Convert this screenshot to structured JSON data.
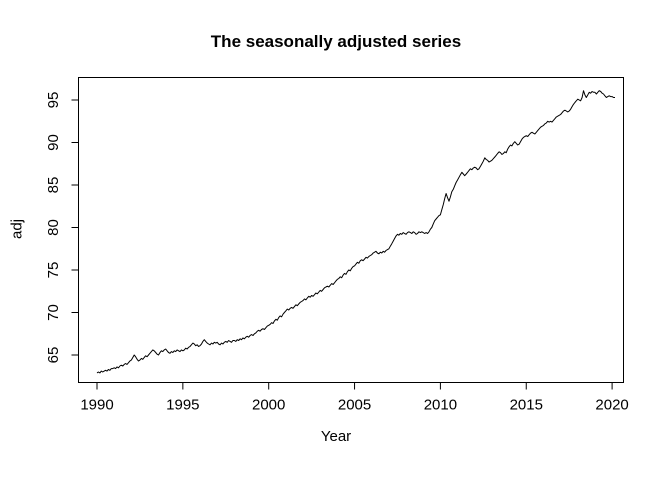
{
  "chart_data": {
    "type": "line",
    "title": "The seasonally adjusted series",
    "xlabel": "Year",
    "ylabel": "adj",
    "x_start": 1990,
    "frequency": 12,
    "xticks": [
      1990,
      1995,
      2000,
      2005,
      2010,
      2015,
      2020
    ],
    "yticks": [
      65,
      70,
      75,
      80,
      85,
      90,
      95
    ],
    "xlim": [
      1988.9,
      2020.7
    ],
    "ylim": [
      61.8,
      97.9
    ],
    "grid": false,
    "legend": null,
    "box": true,
    "line_color": "#000000",
    "background_color": "#ffffff",
    "values": [
      62.9,
      63.0,
      62.9,
      63.1,
      63.0,
      63.1,
      63.2,
      63.1,
      63.3,
      63.2,
      63.4,
      63.4,
      63.5,
      63.4,
      63.6,
      63.5,
      63.7,
      63.8,
      63.7,
      63.9,
      64.0,
      63.9,
      64.1,
      64.3,
      64.4,
      64.7,
      65.0,
      64.8,
      64.5,
      64.3,
      64.4,
      64.6,
      64.5,
      64.7,
      64.9,
      64.8,
      65.0,
      65.2,
      65.4,
      65.6,
      65.5,
      65.3,
      65.1,
      65.0,
      65.3,
      65.5,
      65.4,
      65.6,
      65.7,
      65.5,
      65.3,
      65.2,
      65.4,
      65.3,
      65.5,
      65.4,
      65.6,
      65.5,
      65.4,
      65.6,
      65.5,
      65.6,
      65.8,
      65.7,
      65.9,
      66.0,
      66.2,
      66.4,
      66.3,
      66.1,
      66.2,
      66.0,
      66.1,
      66.3,
      66.6,
      66.8,
      66.6,
      66.4,
      66.3,
      66.2,
      66.4,
      66.3,
      66.5,
      66.4,
      66.5,
      66.3,
      66.2,
      66.4,
      66.3,
      66.5,
      66.6,
      66.5,
      66.7,
      66.6,
      66.5,
      66.7,
      66.7,
      66.6,
      66.8,
      66.7,
      66.9,
      66.8,
      67.0,
      66.9,
      67.1,
      67.2,
      67.1,
      67.3,
      67.4,
      67.3,
      67.5,
      67.6,
      67.8,
      67.9,
      67.8,
      68.0,
      68.1,
      68.0,
      68.2,
      68.4,
      68.5,
      68.6,
      68.8,
      68.7,
      69.0,
      69.2,
      69.1,
      69.4,
      69.6,
      69.5,
      69.8,
      70.0,
      70.2,
      70.4,
      70.3,
      70.5,
      70.6,
      70.5,
      70.7,
      70.9,
      70.8,
      71.0,
      71.2,
      71.3,
      71.4,
      71.6,
      71.5,
      71.7,
      71.9,
      71.8,
      72.0,
      71.9,
      72.1,
      72.3,
      72.2,
      72.4,
      72.6,
      72.5,
      72.7,
      72.9,
      73.0,
      73.1,
      73.0,
      73.2,
      73.4,
      73.3,
      73.5,
      73.7,
      73.9,
      74.0,
      74.2,
      74.1,
      74.4,
      74.6,
      74.5,
      74.8,
      75.0,
      74.9,
      75.2,
      75.4,
      75.5,
      75.7,
      75.9,
      75.8,
      76.1,
      76.2,
      76.1,
      76.3,
      76.5,
      76.4,
      76.6,
      76.7,
      76.8,
      77.0,
      77.1,
      77.2,
      77.0,
      76.9,
      77.1,
      77.0,
      77.2,
      77.1,
      77.3,
      77.4,
      77.5,
      77.8,
      78.1,
      78.4,
      78.7,
      79.0,
      79.2,
      79.1,
      79.3,
      79.2,
      79.4,
      79.3,
      79.2,
      79.4,
      79.5,
      79.4,
      79.3,
      79.5,
      79.4,
      79.2,
      79.3,
      79.5,
      79.4,
      79.5,
      79.4,
      79.3,
      79.4,
      79.3,
      79.5,
      79.8,
      80.0,
      80.4,
      80.8,
      81.0,
      81.2,
      81.4,
      81.5,
      82.1,
      82.7,
      83.4,
      84.0,
      83.5,
      83.1,
      83.6,
      84.2,
      84.5,
      84.9,
      85.3,
      85.6,
      85.9,
      86.2,
      86.5,
      86.3,
      86.1,
      86.3,
      86.5,
      86.7,
      86.9,
      86.8,
      87.0,
      87.1,
      87.0,
      86.8,
      86.9,
      87.2,
      87.5,
      87.8,
      88.2,
      88.0,
      87.9,
      87.7,
      87.8,
      87.9,
      88.1,
      88.3,
      88.5,
      88.7,
      88.9,
      88.8,
      88.6,
      88.7,
      88.9,
      88.8,
      89.2,
      89.5,
      89.7,
      89.6,
      89.9,
      90.1,
      89.9,
      89.7,
      89.8,
      90.1,
      90.4,
      90.6,
      90.7,
      90.8,
      90.7,
      90.9,
      91.1,
      91.2,
      91.1,
      91.0,
      91.2,
      91.4,
      91.6,
      91.8,
      91.9,
      92.0,
      92.2,
      92.3,
      92.5,
      92.4,
      92.5,
      92.4,
      92.6,
      92.8,
      93.0,
      93.1,
      93.2,
      93.3,
      93.5,
      93.7,
      93.8,
      93.7,
      93.6,
      93.7,
      93.9,
      94.2,
      94.5,
      94.7,
      94.9,
      95.1,
      95.0,
      94.9,
      95.3,
      96.1,
      95.6,
      95.3,
      95.6,
      95.9,
      95.8,
      96.0,
      95.9,
      95.9,
      95.7,
      95.9,
      96.1,
      96.0,
      95.8,
      95.7,
      95.5,
      95.3,
      95.4,
      95.5,
      95.4,
      95.4,
      95.3,
      95.3
    ]
  }
}
